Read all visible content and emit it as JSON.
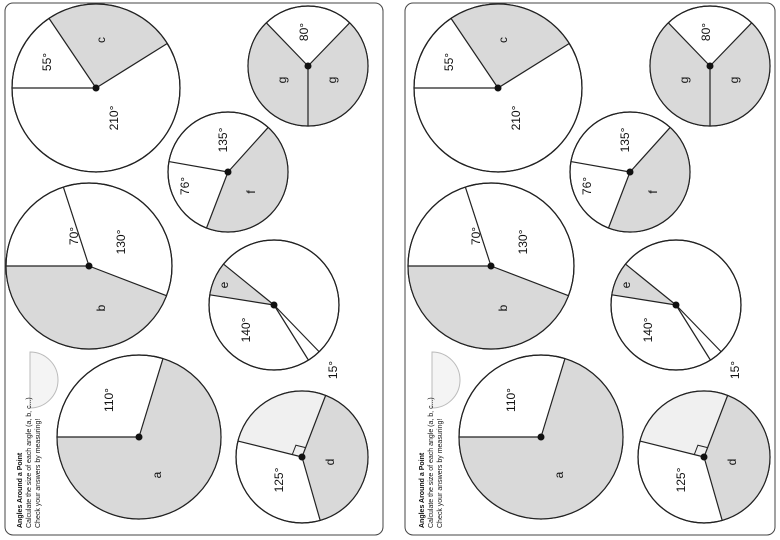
{
  "worksheet": {
    "title": "Angles Around a Point",
    "instructions": [
      "Calculate the size of each angle (a, b, c...)",
      "Check your answers by measuring!"
    ],
    "circles": [
      {
        "labels": [
          "55°",
          "c",
          "210°"
        ]
      },
      {
        "labels": [
          "80°",
          "g",
          "g"
        ]
      },
      {
        "labels": [
          "135°",
          "76°",
          "f"
        ]
      },
      {
        "labels": [
          "70°",
          "130°",
          "b"
        ]
      },
      {
        "labels": [
          "e",
          "140°",
          "15°"
        ]
      },
      {
        "labels": [
          "110°",
          "a"
        ]
      },
      {
        "labels": [
          "125°",
          "d"
        ]
      }
    ]
  }
}
